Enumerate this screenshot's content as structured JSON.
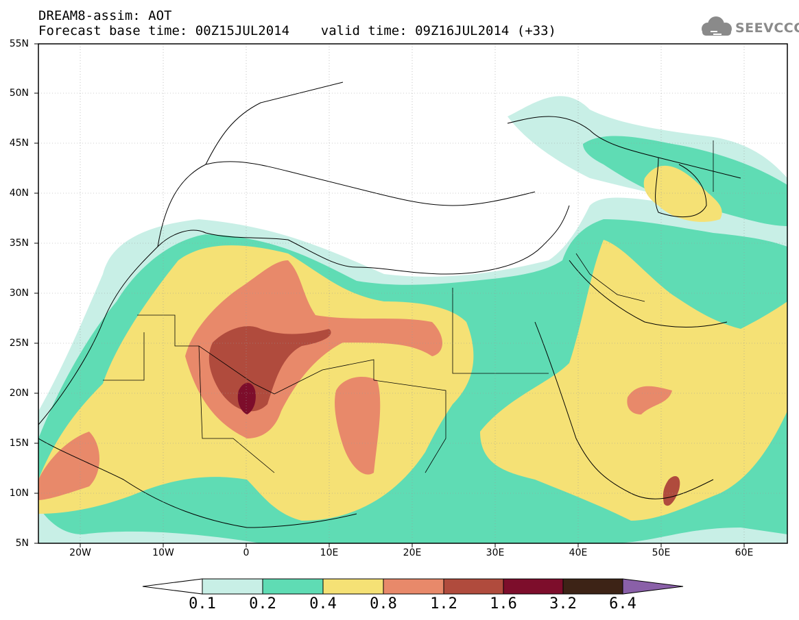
{
  "header": {
    "title_line1": "DREAM8-assim: AOT",
    "title_line2": "Forecast base time: 00Z15JUL2014    valid time: 09Z16JUL2014 (+33)",
    "logo_text": "SEEVCCC"
  },
  "map": {
    "lat_labels": [
      "55N",
      "50N",
      "45N",
      "40N",
      "35N",
      "30N",
      "25N",
      "20N",
      "15N",
      "10N",
      "5N"
    ],
    "lon_labels": [
      "20W",
      "10W",
      "0",
      "10E",
      "20E",
      "30E",
      "40E",
      "50E",
      "60E"
    ],
    "extent": {
      "lon": [
        -25,
        65
      ],
      "lat": [
        5,
        55
      ]
    }
  },
  "colorbar": {
    "labels": [
      "0.1",
      "0.2",
      "0.4",
      "0.8",
      "1.2",
      "1.6",
      "3.2",
      "6.4"
    ],
    "colors": [
      "#ffffff",
      "#c8efe6",
      "#5fdcb4",
      "#f5e175",
      "#e8896a",
      "#b04b3d",
      "#7d0d2b",
      "#3d2316",
      "#8a60a8"
    ]
  }
}
